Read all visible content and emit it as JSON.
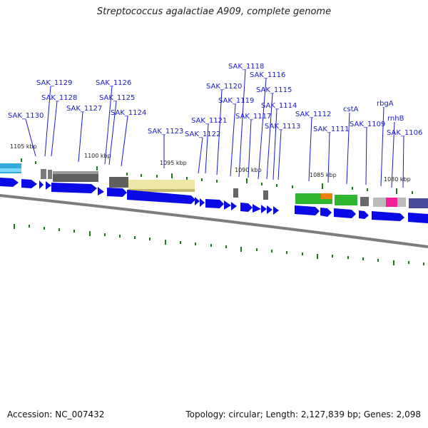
{
  "title": "Streptococcus agalactiae A909, complete genome",
  "footer": {
    "accession": "Accession: NC_007432",
    "summary": "Topology: circular; Length: 2,127,839 bp; Genes: 2,098"
  },
  "colors": {
    "label": "#1a1acc",
    "tick": "#1a7a1a",
    "gene_arrow": "#0a0ae6",
    "backbone": "#8a8a8a"
  },
  "kbp_labels": [
    "1105 kbp",
    "1100 kbp",
    "1095 kbp",
    "1090 kbp",
    "1085 kbp",
    "1080 kbp"
  ],
  "gene_labels": [
    "SAK_1130",
    "SAK_1129",
    "SAK_1128",
    "SAK_1127",
    "SAK_1126",
    "SAK_1125",
    "SAK_1124",
    "SAK_1123",
    "SAK_1122",
    "SAK_1121",
    "SAK_1120",
    "SAK_1119",
    "SAK_1118",
    "SAK_1117",
    "SAK_1116",
    "SAK_1115",
    "SAK_1114",
    "SAK_1113",
    "SAK_1112",
    "SAK_1111",
    "cstA",
    "SAK_1109",
    "rbgA",
    "rnhB",
    "SAK_1106"
  ]
}
